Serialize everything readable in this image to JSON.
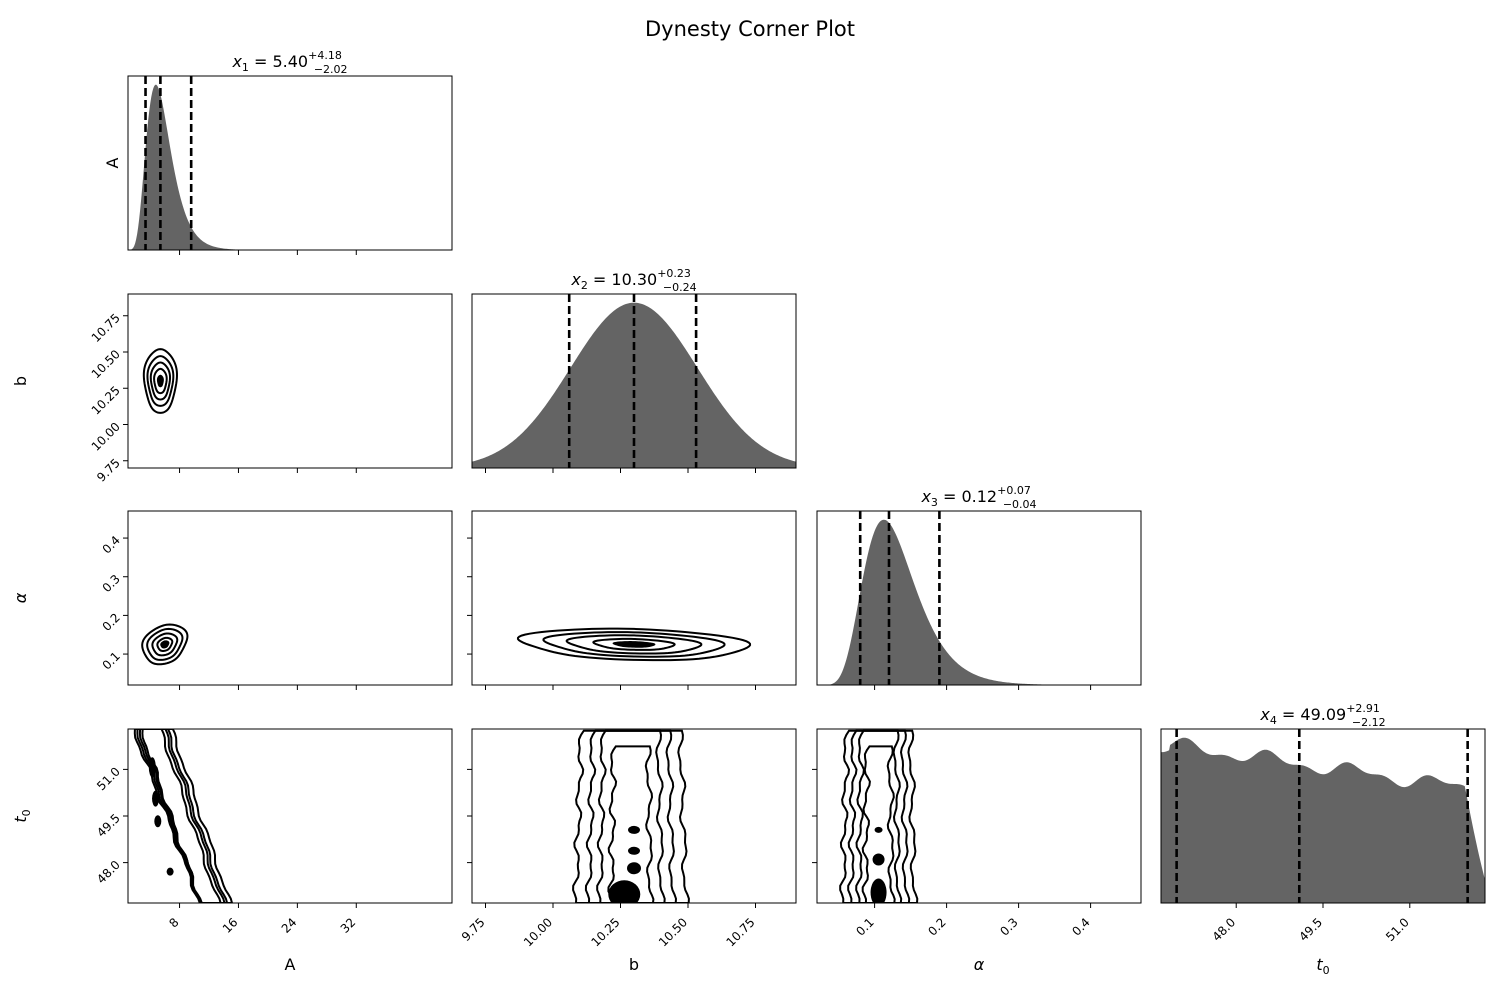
{
  "figure": {
    "title": "Dynesty Corner Plot"
  },
  "chart_data": {
    "type": "corner",
    "parameters": [
      {
        "label": "A",
        "title_base": "x",
        "title_sub": "1",
        "title_value": "5.40",
        "err_plus": "+4.18",
        "err_minus": "−2.02",
        "range": [
          1.0,
          45.0
        ],
        "ticks": [
          8,
          16,
          24,
          32
        ],
        "tick_labels": [
          "8",
          "16",
          "24",
          "32"
        ],
        "quantiles": [
          3.38,
          5.4,
          9.58
        ]
      },
      {
        "label": "b",
        "title_base": "x",
        "title_sub": "2",
        "title_value": "10.30",
        "err_plus": "+0.23",
        "err_minus": "−0.24",
        "range": [
          9.7,
          10.9
        ],
        "ticks": [
          9.75,
          10.0,
          10.25,
          10.5,
          10.75
        ],
        "tick_labels": [
          "9.75",
          "10.00",
          "10.25",
          "10.50",
          "10.75"
        ],
        "quantiles": [
          10.06,
          10.3,
          10.53
        ]
      },
      {
        "label": "α",
        "title_base": "x",
        "title_sub": "3",
        "title_value": "0.12",
        "err_plus": "+0.07",
        "err_minus": "−0.04",
        "range": [
          0.02,
          0.47
        ],
        "ticks": [
          0.1,
          0.2,
          0.3,
          0.4
        ],
        "tick_labels": [
          "0.1",
          "0.2",
          "0.3",
          "0.4"
        ],
        "quantiles": [
          0.08,
          0.12,
          0.19
        ]
      },
      {
        "label": "t",
        "label_sub": "0",
        "title_base": "x",
        "title_sub": "4",
        "title_value": "49.09",
        "err_plus": "+2.91",
        "err_minus": "−2.12",
        "range": [
          46.7,
          52.3
        ],
        "ticks": [
          48.0,
          49.5,
          51.0
        ],
        "tick_labels": [
          "48.0",
          "49.5",
          "51.0"
        ],
        "quantiles": [
          46.97,
          49.09,
          52.0
        ]
      }
    ],
    "histogram_color": "#646464",
    "contour_color": "#000000",
    "quantile_line_style": "dashed"
  }
}
